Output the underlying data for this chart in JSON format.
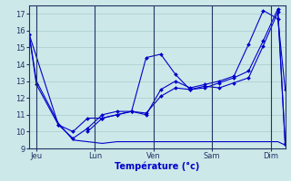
{
  "xlabel": "Température (°c)",
  "ylim": [
    9,
    17.5
  ],
  "xlim": [
    0,
    35
  ],
  "background_color": "#cce8e8",
  "grid_color": "#aacccc",
  "line_color": "#0000cc",
  "border_color": "#223366",
  "x_ticks": [
    1,
    9,
    17,
    25,
    33
  ],
  "x_tick_labels": [
    "Jeu",
    "Lun",
    "Ven",
    "Sam",
    "Dim"
  ],
  "y_ticks": [
    9,
    10,
    11,
    12,
    13,
    14,
    15,
    16,
    17
  ],
  "vlines": [
    1,
    9,
    17,
    25,
    33
  ],
  "s1_x": [
    0,
    1,
    4,
    6,
    8,
    10,
    12,
    14,
    16,
    18,
    20,
    22,
    24,
    26,
    28,
    30,
    32,
    34,
    35
  ],
  "s1_y": [
    15.8,
    12.8,
    10.4,
    10.0,
    10.8,
    10.8,
    11.0,
    11.2,
    11.0,
    12.5,
    13.0,
    12.6,
    12.8,
    13.0,
    13.3,
    15.2,
    17.2,
    16.7,
    12.5
  ],
  "s2_x": [
    0,
    4,
    6,
    8,
    10,
    12,
    14,
    16,
    18,
    20,
    22,
    24,
    26,
    28,
    30,
    32,
    34,
    35
  ],
  "s2_y": [
    15.8,
    10.4,
    9.6,
    10.2,
    11.0,
    11.2,
    11.2,
    14.4,
    14.6,
    13.4,
    12.5,
    12.7,
    12.6,
    12.9,
    13.2,
    15.1,
    17.1,
    9.2
  ],
  "s3_x": [
    8,
    10,
    12,
    14,
    16,
    18,
    20,
    22,
    24,
    26,
    28,
    30,
    32,
    34,
    35
  ],
  "s3_y": [
    10.0,
    10.8,
    11.0,
    11.2,
    11.1,
    12.1,
    12.6,
    12.5,
    12.6,
    12.9,
    13.2,
    13.6,
    15.4,
    17.3,
    9.3
  ],
  "s4_x": [
    0,
    1,
    4,
    6,
    8,
    10,
    12,
    14,
    16,
    18,
    20,
    22,
    24,
    26,
    28,
    30,
    32,
    34,
    35
  ],
  "s4_y": [
    15.8,
    13.0,
    10.5,
    9.5,
    9.4,
    9.3,
    9.4,
    9.4,
    9.4,
    9.4,
    9.4,
    9.4,
    9.4,
    9.4,
    9.4,
    9.4,
    9.4,
    9.4,
    9.2
  ]
}
